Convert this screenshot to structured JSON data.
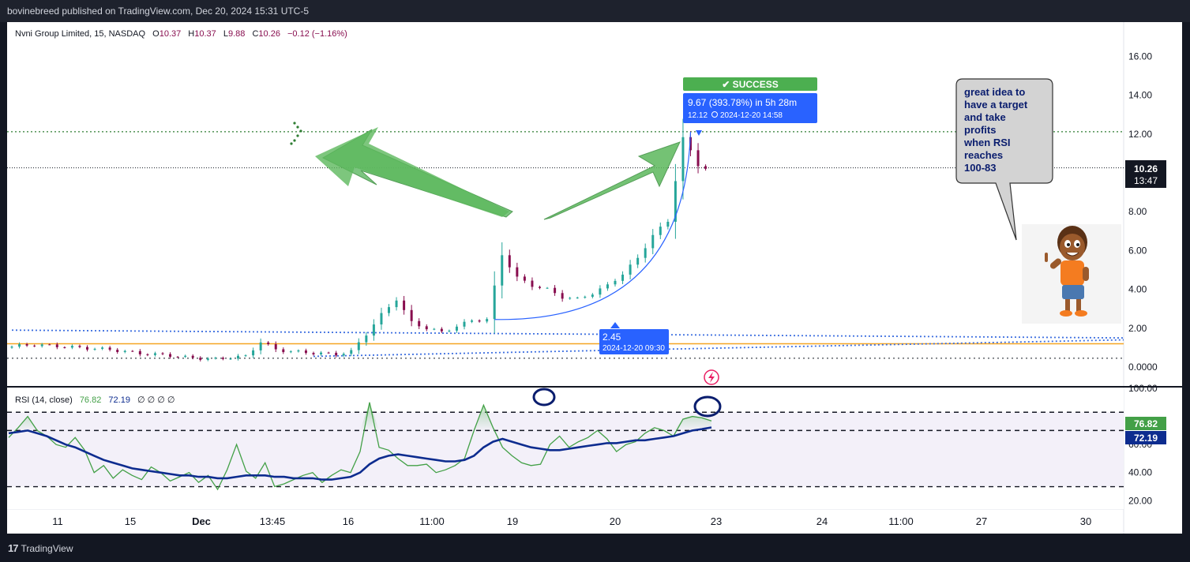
{
  "publisher_line": "bovinebreed published on TradingView.com, Dec 20, 2024 15:31 UTC-5",
  "footer_brand": "TradingView",
  "footer_logo_icon": "tradingview-logo-icon",
  "legend": {
    "symbol": "Nvni Group Limited, 15, NASDAQ",
    "open_label": "O",
    "open": "10.37",
    "high_label": "H",
    "high": "10.37",
    "low_label": "L",
    "low": "9.88",
    "close_label": "C",
    "close": "10.26",
    "change": "−0.12 (−1.16%)"
  },
  "price_axis": {
    "ticks": [
      "16.00",
      "14.00",
      "12.00",
      "8.00",
      "6.00",
      "4.00",
      "2.00",
      "0.0000"
    ],
    "last_price_label": "10.26",
    "countdown_label": "13:47"
  },
  "time_axis": {
    "ticks": [
      "11",
      "15",
      "Dec",
      "13:45",
      "16",
      "11:00",
      "19",
      "20",
      "23",
      "24",
      "11:00",
      "27",
      "30"
    ]
  },
  "trade_annotation": {
    "status_icon": "check-icon",
    "status": "✔ SUCCESS",
    "gain_line": "9.67 (393.78%) in 5h 28m",
    "target_price": "12.12",
    "clock_icon": "clock-icon",
    "target_time": "2024-12-20  14:58",
    "entry_price": "2.45",
    "entry_time": "2024-12-20 09:30"
  },
  "note": {
    "lines": [
      "great idea to",
      "have a target",
      "and take",
      "profits",
      "when RSI",
      "reaches",
      "100-83"
    ]
  },
  "cartoon": {
    "icon": "cartoon-boy-pointing-icon"
  },
  "event_icon": "lightning-icon",
  "rsi": {
    "legend": "RSI (14, close)",
    "value": "76.82",
    "ma_value": "72.19",
    "extras": "∅ ∅ ∅ ∅",
    "axis_ticks": [
      "100.00",
      "60.00",
      "40.00",
      "20.00"
    ],
    "levels": [
      83,
      70,
      30
    ]
  },
  "colors": {
    "up": "#26a69a",
    "down": "#880e4f",
    "accent_green": "#4caf50",
    "accent_blue": "#2962ff",
    "rsi_line": "#43a047",
    "rsi_ma": "#0d2c8f",
    "orange_level": "#f5a623",
    "dotted_blue": "#3d6fe0"
  },
  "chart_data": [
    {
      "type": "candlestick",
      "title": "Nvni Group Limited, 15, NASDAQ",
      "x_ticks": [
        "11",
        "15",
        "Dec",
        "13:45",
        "16",
        "11:00",
        "19",
        "20",
        "23",
        "24",
        "11:00",
        "27",
        "30"
      ],
      "ylim": [
        -0.5,
        17.0
      ],
      "y_ticks": [
        0.0,
        2.0,
        4.0,
        6.0,
        8.0,
        10.0,
        12.0,
        14.0,
        16.0
      ],
      "horizontal_levels": [
        {
          "name": "target",
          "value": 12.12,
          "style": "dotted"
        },
        {
          "name": "last",
          "value": 10.26,
          "style": "dotted"
        },
        {
          "name": "orange",
          "value": 1.2,
          "style": "solid"
        },
        {
          "name": "bottom",
          "value": 0.45,
          "style": "dotted"
        }
      ],
      "close_path": [
        [
          0,
          1.0
        ],
        [
          2,
          1.1
        ],
        [
          4,
          1.15
        ],
        [
          6,
          1.1
        ],
        [
          8,
          1.05
        ],
        [
          10,
          1.0
        ],
        [
          12,
          0.95
        ],
        [
          14,
          0.9
        ],
        [
          16,
          0.8
        ],
        [
          18,
          0.7
        ],
        [
          20,
          0.65
        ],
        [
          22,
          0.6
        ],
        [
          24,
          0.5
        ],
        [
          26,
          0.45
        ],
        [
          28,
          0.4
        ],
        [
          30,
          0.5
        ],
        [
          32,
          0.55
        ],
        [
          34,
          1.3
        ],
        [
          36,
          0.9
        ],
        [
          38,
          0.8
        ],
        [
          40,
          0.75
        ],
        [
          42,
          0.7
        ],
        [
          44,
          0.65
        ],
        [
          46,
          0.8
        ],
        [
          48,
          1.7
        ],
        [
          50,
          2.7
        ],
        [
          52,
          3.5
        ],
        [
          54,
          2.3
        ],
        [
          56,
          2.0
        ],
        [
          58,
          1.8
        ],
        [
          60,
          2.1
        ],
        [
          62,
          2.4
        ],
        [
          64,
          2.45
        ],
        [
          66,
          5.8
        ],
        [
          68,
          4.6
        ],
        [
          70,
          4.2
        ],
        [
          72,
          4.0
        ],
        [
          74,
          3.6
        ],
        [
          76,
          3.5
        ],
        [
          78,
          3.8
        ],
        [
          80,
          4.2
        ],
        [
          82,
          4.8
        ],
        [
          84,
          5.6
        ],
        [
          86,
          6.8
        ],
        [
          88,
          7.5
        ],
        [
          90,
          11.8
        ],
        [
          92,
          10.4
        ],
        [
          93,
          10.26
        ]
      ],
      "arc_from": {
        "x": 64,
        "y": 2.45
      },
      "arc_to": {
        "x": 90,
        "y": 12.12
      },
      "trendline_from": {
        "x": 0,
        "y": 1.9
      },
      "trendline_to": {
        "x": 150,
        "y": 1.5
      },
      "trendline2_from": {
        "x": 40,
        "y": 0.55
      },
      "trendline2_to": {
        "x": 150,
        "y": 1.4
      }
    },
    {
      "type": "line",
      "title": "RSI (14, close)",
      "ylim": [
        14,
        100
      ],
      "y_ticks": [
        20,
        40,
        60,
        100
      ],
      "series": [
        {
          "name": "RSI (14, close)",
          "values": [
            65,
            72,
            80,
            70,
            66,
            60,
            58,
            65,
            56,
            40,
            45,
            36,
            42,
            38,
            35,
            44,
            40,
            34,
            37,
            40,
            33,
            38,
            28,
            42,
            60,
            41,
            36,
            47,
            30,
            32,
            35,
            38,
            40,
            33,
            38,
            42,
            40,
            55,
            90,
            58,
            56,
            50,
            45,
            45,
            46,
            40,
            42,
            45,
            50,
            70,
            88,
            72,
            58,
            52,
            47,
            45,
            46,
            60,
            66,
            58,
            62,
            65,
            70,
            64,
            55,
            60,
            62,
            68,
            72,
            70,
            66,
            78,
            80,
            79,
            76.82
          ]
        },
        {
          "name": "RSI MA",
          "values": [
            68,
            69,
            70,
            68,
            66,
            63,
            60,
            58,
            55,
            52,
            49,
            47,
            45,
            43,
            42,
            41,
            40,
            39,
            38,
            38,
            37,
            37,
            36,
            36,
            37,
            38,
            38,
            38,
            37,
            37,
            36,
            36,
            36,
            35,
            35,
            36,
            37,
            40,
            46,
            50,
            52,
            53,
            52,
            51,
            50,
            49,
            48,
            48,
            49,
            52,
            58,
            62,
            64,
            62,
            60,
            58,
            57,
            56,
            56,
            57,
            58,
            59,
            60,
            61,
            61,
            62,
            63,
            63,
            64,
            65,
            66,
            68,
            70,
            71,
            72.19
          ]
        }
      ],
      "levels": [
        83,
        70,
        30
      ]
    }
  ]
}
